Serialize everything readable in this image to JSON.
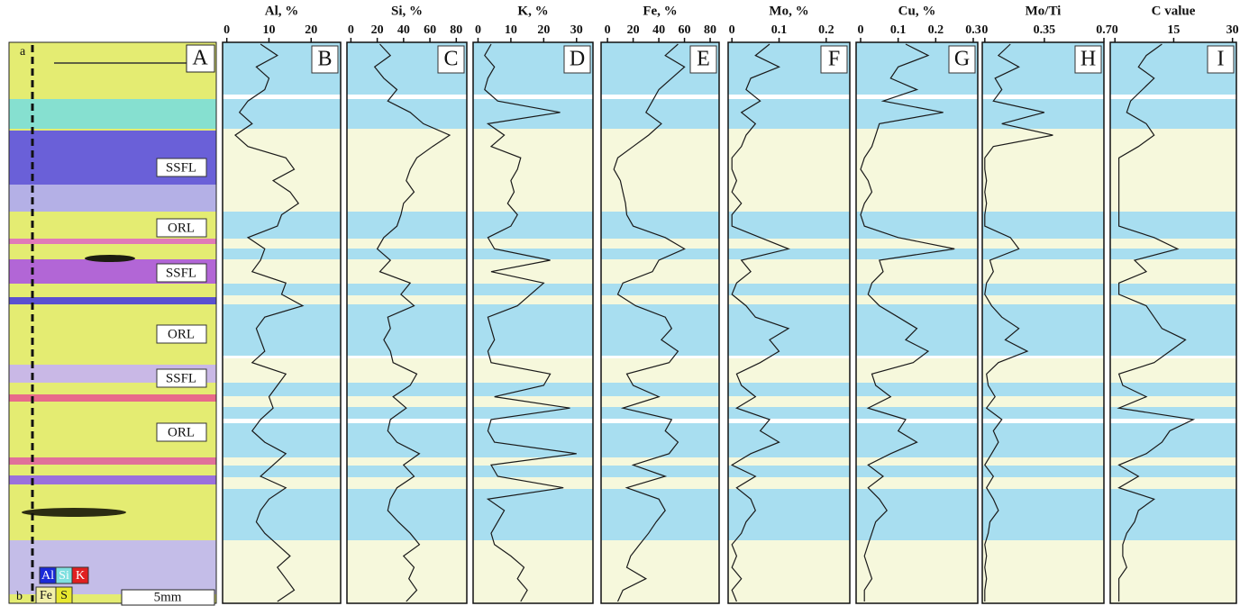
{
  "chart_data": [
    {
      "type": "line",
      "title": "Al, %",
      "panel_label": "B",
      "xlim": [
        -1,
        27
      ],
      "xticks": [
        0,
        10,
        20
      ],
      "color": "#1a1a1a",
      "values": [
        8,
        12,
        7,
        10,
        9,
        5,
        3,
        6,
        2,
        5,
        14,
        16,
        11,
        15,
        17,
        13,
        12,
        5,
        9,
        8,
        6,
        14,
        13,
        18,
        9,
        7,
        8,
        9,
        6,
        14,
        12,
        10,
        11,
        8,
        6,
        9,
        14,
        11,
        8,
        14,
        10,
        8,
        7,
        9,
        12,
        15,
        12,
        14,
        16,
        12
      ]
    },
    {
      "type": "line",
      "title": "Si, %",
      "panel_label": "C",
      "xlim": [
        -3,
        88
      ],
      "xticks": [
        0,
        20,
        40,
        60,
        80
      ],
      "color": "#1a1a1a",
      "values": [
        22,
        30,
        18,
        25,
        35,
        28,
        45,
        55,
        75,
        62,
        50,
        45,
        42,
        48,
        40,
        38,
        35,
        25,
        20,
        30,
        22,
        45,
        38,
        48,
        28,
        30,
        25,
        30,
        32,
        50,
        45,
        32,
        42,
        30,
        28,
        35,
        52,
        40,
        48,
        35,
        30,
        28,
        36,
        45,
        52,
        40,
        48,
        44,
        50,
        42
      ]
    },
    {
      "type": "line",
      "title": "K, %",
      "panel_label": "D",
      "xlim": [
        -1.5,
        35
      ],
      "xticks": [
        0,
        10,
        20,
        30
      ],
      "color": "#1a1a1a",
      "values": [
        4,
        2,
        5,
        3,
        2,
        6,
        25,
        3,
        8,
        4,
        13,
        12,
        10,
        11,
        9,
        12,
        10,
        3,
        5,
        22,
        4,
        20,
        16,
        12,
        3,
        4,
        5,
        3,
        4,
        22,
        20,
        5,
        28,
        4,
        3,
        5,
        30,
        4,
        6,
        26,
        3,
        8,
        6,
        4,
        5,
        10,
        14,
        12,
        15,
        13
      ]
    },
    {
      "type": "line",
      "title": "Fe, %",
      "panel_label": "E",
      "xlim": [
        -5,
        87
      ],
      "xticks": [
        0,
        20,
        40,
        60,
        80
      ],
      "color": "#1a1a1a",
      "values": [
        55,
        45,
        60,
        50,
        40,
        35,
        30,
        42,
        32,
        20,
        8,
        5,
        10,
        12,
        14,
        15,
        20,
        45,
        60,
        40,
        35,
        12,
        8,
        22,
        45,
        50,
        42,
        55,
        48,
        15,
        20,
        40,
        12,
        50,
        45,
        55,
        48,
        20,
        45,
        15,
        40,
        45,
        38,
        32,
        25,
        18,
        15,
        30,
        12,
        8
      ]
    },
    {
      "type": "line",
      "title": "Mo, %",
      "panel_label": "F",
      "xlim": [
        -0.008,
        0.25
      ],
      "xticks": [
        0,
        0.1,
        0.2
      ],
      "color": "#1a1a1a",
      "values": [
        0.08,
        0.05,
        0.1,
        0.04,
        0.03,
        0.06,
        0.02,
        0.05,
        0.03,
        0.02,
        0,
        0,
        0.01,
        0,
        0.02,
        0,
        0,
        0.06,
        0.12,
        0.02,
        0.04,
        0.01,
        0,
        0.03,
        0.05,
        0.12,
        0.08,
        0.1,
        0.06,
        0.01,
        0.02,
        0.05,
        0.01,
        0.08,
        0.06,
        0.1,
        0.04,
        0,
        0.05,
        0.01,
        0.04,
        0.05,
        0.03,
        0.02,
        0,
        0.01,
        0,
        0.02,
        0,
        0.01
      ]
    },
    {
      "type": "line",
      "title": "Cu, %",
      "panel_label": "G",
      "xlim": [
        -0.012,
        0.312
      ],
      "xticks": [
        0,
        0.1,
        0.2,
        0.3
      ],
      "color": "#1a1a1a",
      "values": [
        0.12,
        0.18,
        0.1,
        0.08,
        0.15,
        0.06,
        0.22,
        0.05,
        0.04,
        0.03,
        0.01,
        0,
        0.02,
        0.03,
        0.01,
        0,
        0.01,
        0.1,
        0.25,
        0.05,
        0.06,
        0.03,
        0.02,
        0.05,
        0.1,
        0.15,
        0.12,
        0.18,
        0.14,
        0.03,
        0.04,
        0.08,
        0.02,
        0.12,
        0.1,
        0.15,
        0.08,
        0.02,
        0.06,
        0.02,
        0.05,
        0.07,
        0.04,
        0.03,
        0.02,
        0.01,
        0.02,
        0.03,
        0.01,
        0.01
      ]
    },
    {
      "type": "line",
      "title": "Mo/Ti",
      "panel_label": "H",
      "xlim": [
        -0.015,
        0.7
      ],
      "xticks": [
        0,
        0.35,
        0.7
      ],
      "color": "#1a1a1a",
      "values": [
        0.15,
        0.08,
        0.2,
        0.06,
        0.1,
        0.05,
        0.35,
        0.1,
        0.4,
        0.05,
        0,
        0,
        0.01,
        0,
        0.01,
        0,
        0,
        0.15,
        0.2,
        0.03,
        0.05,
        0.01,
        0,
        0.04,
        0.1,
        0.2,
        0.12,
        0.25,
        0.08,
        0.01,
        0.02,
        0.06,
        0.01,
        0.1,
        0.05,
        0.08,
        0.04,
        0,
        0.05,
        0.01,
        0.05,
        0.08,
        0.03,
        0.02,
        0,
        0.01,
        0,
        0.01,
        0,
        0
      ]
    },
    {
      "type": "line",
      "title": "C value",
      "panel_label": "I",
      "xlim": [
        -1.2,
        31
      ],
      "xticks": [
        0,
        15,
        30
      ],
      "color": "#1a1a1a",
      "values": [
        12,
        8,
        6,
        10,
        7,
        4,
        3,
        8,
        10,
        6,
        1,
        1,
        1,
        1,
        1,
        1,
        1,
        10,
        16,
        5,
        8,
        1,
        1,
        8,
        10,
        12,
        18,
        14,
        10,
        1,
        2,
        8,
        1,
        20,
        14,
        12,
        8,
        1,
        6,
        1,
        10,
        6,
        5,
        3,
        2,
        2,
        3,
        1,
        1,
        1
      ]
    }
  ],
  "image_panel": {
    "panel_label": "A",
    "top_marker": "a",
    "bottom_marker": "b",
    "layer_labels": [
      "SSFL",
      "ORL",
      "SSFL",
      "ORL",
      "SSFL",
      "ORL"
    ],
    "legend": [
      "Al",
      "Si",
      "K",
      "Fe",
      "S"
    ],
    "scale_bar": "5mm"
  }
}
